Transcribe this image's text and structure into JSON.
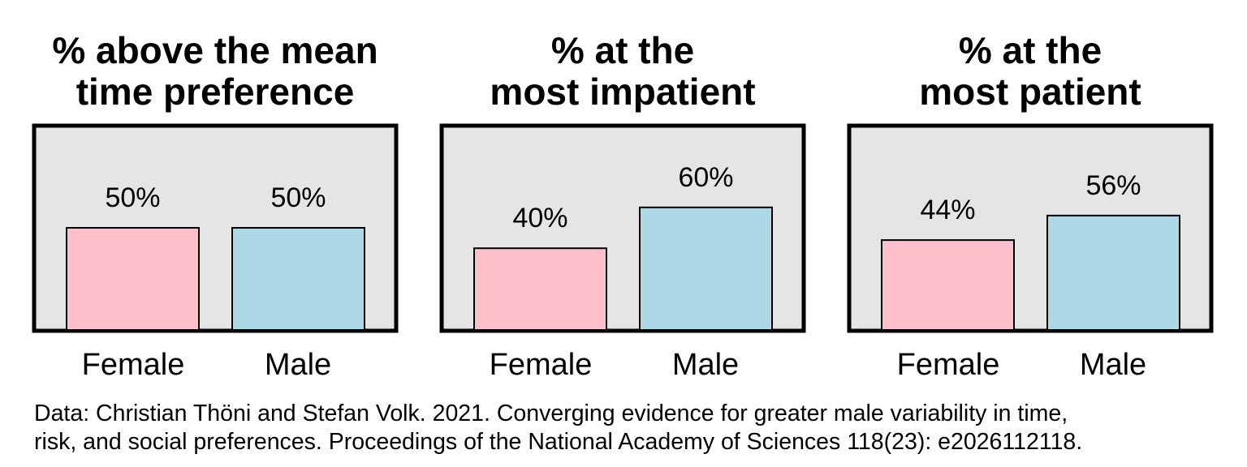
{
  "chart_data": [
    {
      "type": "bar",
      "title_lines": [
        "% above the mean",
        "time preference"
      ],
      "categories": [
        "Female",
        "Male"
      ],
      "values": [
        50,
        50
      ],
      "value_labels": [
        "50%",
        "50%"
      ],
      "ylim": [
        0,
        100
      ],
      "grid": false,
      "colors": [
        "#ffc0cb",
        "#add8e6"
      ],
      "panel_background": "#e5e5e5"
    },
    {
      "type": "bar",
      "title_lines": [
        "% at the",
        "most impatient"
      ],
      "categories": [
        "Female",
        "Male"
      ],
      "values": [
        40,
        60
      ],
      "value_labels": [
        "40%",
        "60%"
      ],
      "ylim": [
        0,
        100
      ],
      "grid": false,
      "colors": [
        "#ffc0cb",
        "#add8e6"
      ],
      "panel_background": "#e5e5e5"
    },
    {
      "type": "bar",
      "title_lines": [
        "% at the",
        "most patient"
      ],
      "categories": [
        "Female",
        "Male"
      ],
      "values": [
        44,
        56
      ],
      "value_labels": [
        "44%",
        "56%"
      ],
      "ylim": [
        0,
        100
      ],
      "grid": false,
      "colors": [
        "#ffc0cb",
        "#add8e6"
      ],
      "panel_background": "#e5e5e5"
    }
  ],
  "caption": {
    "line1": "Data: Christian Thöni and Stefan Volk. 2021. Converging evidence for greater male variability in time,",
    "line2": "risk, and social preferences. Proceedings of the National Academy of Sciences 118(23): e2026112118."
  }
}
